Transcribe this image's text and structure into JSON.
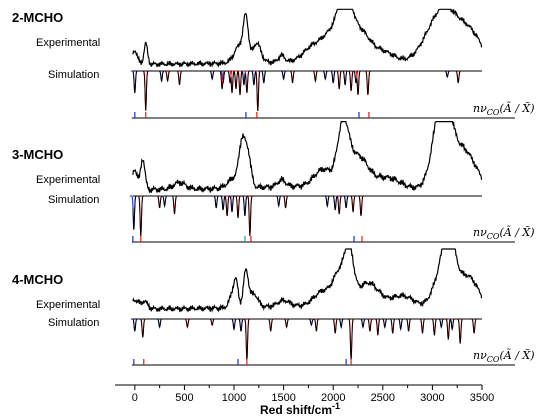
{
  "chart_data": {
    "type": "line",
    "xlabel_main": "Red shift/cm",
    "xlabel_sup": "-1",
    "xlim": [
      -200,
      3500
    ],
    "x_ticks": [
      0,
      500,
      1000,
      1500,
      2000,
      2500,
      3000,
      3500
    ],
    "row_labels": {
      "experimental": "Experimental",
      "simulation": "Simulation"
    },
    "annotation": {
      "main": "nν",
      "sub": "CO",
      "paren": "(Ã / X̃)"
    },
    "colors": {
      "black": "#000000",
      "red": "#e41a1c",
      "blue": "#2030c8",
      "teal": "#1fa3a3"
    },
    "panels": [
      {
        "label": "2-MCHO",
        "experimental": {
          "baseline": 0.05,
          "peaks": [
            [
              0,
              0.25,
              25
            ],
            [
              110,
              0.38,
              18
            ],
            [
              1060,
              0.32,
              55
            ],
            [
              1120,
              0.7,
              25
            ],
            [
              1230,
              0.35,
              40
            ],
            [
              1480,
              0.12,
              30
            ],
            [
              1780,
              0.22,
              90
            ],
            [
              2000,
              0.55,
              110
            ],
            [
              2120,
              0.95,
              60
            ],
            [
              2260,
              0.55,
              100
            ],
            [
              2500,
              0.2,
              120
            ],
            [
              3000,
              0.45,
              130
            ],
            [
              3150,
              0.72,
              120
            ],
            [
              3380,
              0.55,
              120
            ]
          ]
        },
        "simulation": {
          "red": [
            [
              110,
              1.0
            ],
            [
              330,
              0.25
            ],
            [
              450,
              0.35
            ],
            [
              880,
              0.45
            ],
            [
              980,
              0.55
            ],
            [
              1020,
              0.45
            ],
            [
              1060,
              0.6
            ],
            [
              1130,
              0.55
            ],
            [
              1240,
              1.0
            ],
            [
              1590,
              0.3
            ],
            [
              1820,
              0.25
            ],
            [
              2060,
              0.45
            ],
            [
              2180,
              0.5
            ],
            [
              2250,
              0.6
            ],
            [
              2350,
              0.6
            ],
            [
              3260,
              0.3
            ]
          ],
          "blue": [
            [
              0,
              0.55
            ],
            [
              270,
              0.25
            ],
            [
              780,
              0.2
            ],
            [
              890,
              0.3
            ],
            [
              960,
              0.3
            ],
            [
              1100,
              0.35
            ],
            [
              1200,
              0.35
            ],
            [
              1300,
              0.3
            ],
            [
              1500,
              0.2
            ],
            [
              1920,
              0.2
            ],
            [
              2000,
              0.3
            ],
            [
              2120,
              0.35
            ],
            [
              2230,
              0.3
            ],
            [
              3150,
              0.15
            ]
          ]
        },
        "sticks": [
          [
            0,
            "blue"
          ],
          [
            110,
            "red"
          ],
          [
            1120,
            "blue"
          ],
          [
            1230,
            "red"
          ],
          [
            2260,
            "blue"
          ],
          [
            2360,
            "red"
          ]
        ]
      },
      {
        "label": "3-MCHO",
        "experimental": {
          "baseline": 0.05,
          "peaks": [
            [
              0,
              0.3,
              25
            ],
            [
              80,
              0.45,
              22
            ],
            [
              450,
              0.1,
              60
            ],
            [
              1000,
              0.15,
              60
            ],
            [
              1080,
              0.62,
              30
            ],
            [
              1140,
              0.5,
              30
            ],
            [
              1480,
              0.1,
              40
            ],
            [
              1900,
              0.25,
              90
            ],
            [
              2100,
              0.85,
              55
            ],
            [
              2250,
              0.45,
              100
            ],
            [
              2550,
              0.15,
              120
            ],
            [
              3050,
              0.5,
              80
            ],
            [
              3120,
              1.0,
              70
            ],
            [
              3300,
              0.6,
              130
            ]
          ]
        },
        "simulation": {
          "red": [
            [
              60,
              1.0
            ],
            [
              250,
              0.3
            ],
            [
              400,
              0.45
            ],
            [
              930,
              0.5
            ],
            [
              1040,
              0.55
            ],
            [
              1160,
              1.0
            ],
            [
              1520,
              0.3
            ],
            [
              2060,
              0.45
            ],
            [
              2200,
              0.4
            ],
            [
              2280,
              0.5
            ]
          ],
          "blue": [
            [
              -10,
              0.85
            ],
            [
              300,
              0.25
            ],
            [
              820,
              0.3
            ],
            [
              890,
              0.35
            ],
            [
              980,
              0.4
            ],
            [
              1110,
              0.5
            ],
            [
              1450,
              0.25
            ],
            [
              1940,
              0.25
            ],
            [
              2020,
              0.35
            ],
            [
              2130,
              0.3
            ]
          ]
        },
        "sticks": [
          [
            -20,
            "blue"
          ],
          [
            60,
            "red"
          ],
          [
            1110,
            "teal"
          ],
          [
            1170,
            "red"
          ],
          [
            2210,
            "blue"
          ],
          [
            2290,
            "red"
          ]
        ]
      },
      {
        "label": "4-MCHO",
        "experimental": {
          "baseline": 0.05,
          "peaks": [
            [
              0,
              0.15,
              40
            ],
            [
              100,
              0.12,
              30
            ],
            [
              980,
              0.2,
              30
            ],
            [
              1020,
              0.4,
              22
            ],
            [
              1120,
              0.6,
              25
            ],
            [
              1200,
              0.22,
              40
            ],
            [
              1500,
              0.1,
              60
            ],
            [
              1900,
              0.25,
              90
            ],
            [
              2060,
              0.5,
              60
            ],
            [
              2160,
              0.85,
              45
            ],
            [
              2350,
              0.4,
              110
            ],
            [
              2700,
              0.2,
              120
            ],
            [
              3080,
              0.5,
              80
            ],
            [
              3170,
              0.95,
              60
            ],
            [
              3350,
              0.55,
              110
            ]
          ]
        },
        "simulation": {
          "red": [
            [
              80,
              0.45
            ],
            [
              530,
              0.2
            ],
            [
              780,
              0.15
            ],
            [
              1130,
              1.0
            ],
            [
              1370,
              0.3
            ],
            [
              1530,
              0.2
            ],
            [
              1830,
              0.3
            ],
            [
              2020,
              0.35
            ],
            [
              2180,
              1.0
            ],
            [
              2370,
              0.3
            ],
            [
              2450,
              0.4
            ],
            [
              2600,
              0.35
            ],
            [
              2760,
              0.3
            ],
            [
              2900,
              0.35
            ],
            [
              3020,
              0.4
            ],
            [
              3160,
              0.5
            ],
            [
              3280,
              0.6
            ],
            [
              3420,
              0.35
            ]
          ],
          "blue": [
            [
              0,
              0.3
            ],
            [
              250,
              0.2
            ],
            [
              1000,
              0.25
            ],
            [
              1070,
              0.3
            ],
            [
              1780,
              0.15
            ],
            [
              2080,
              0.2
            ],
            [
              2300,
              0.2
            ],
            [
              2520,
              0.2
            ],
            [
              2680,
              0.25
            ],
            [
              3090,
              0.2
            ],
            [
              3200,
              0.25
            ]
          ]
        },
        "sticks": [
          [
            -10,
            "blue"
          ],
          [
            90,
            "red"
          ],
          [
            1040,
            "blue"
          ],
          [
            1130,
            "red"
          ],
          [
            2130,
            "blue"
          ],
          [
            2180,
            "red"
          ]
        ]
      }
    ]
  }
}
